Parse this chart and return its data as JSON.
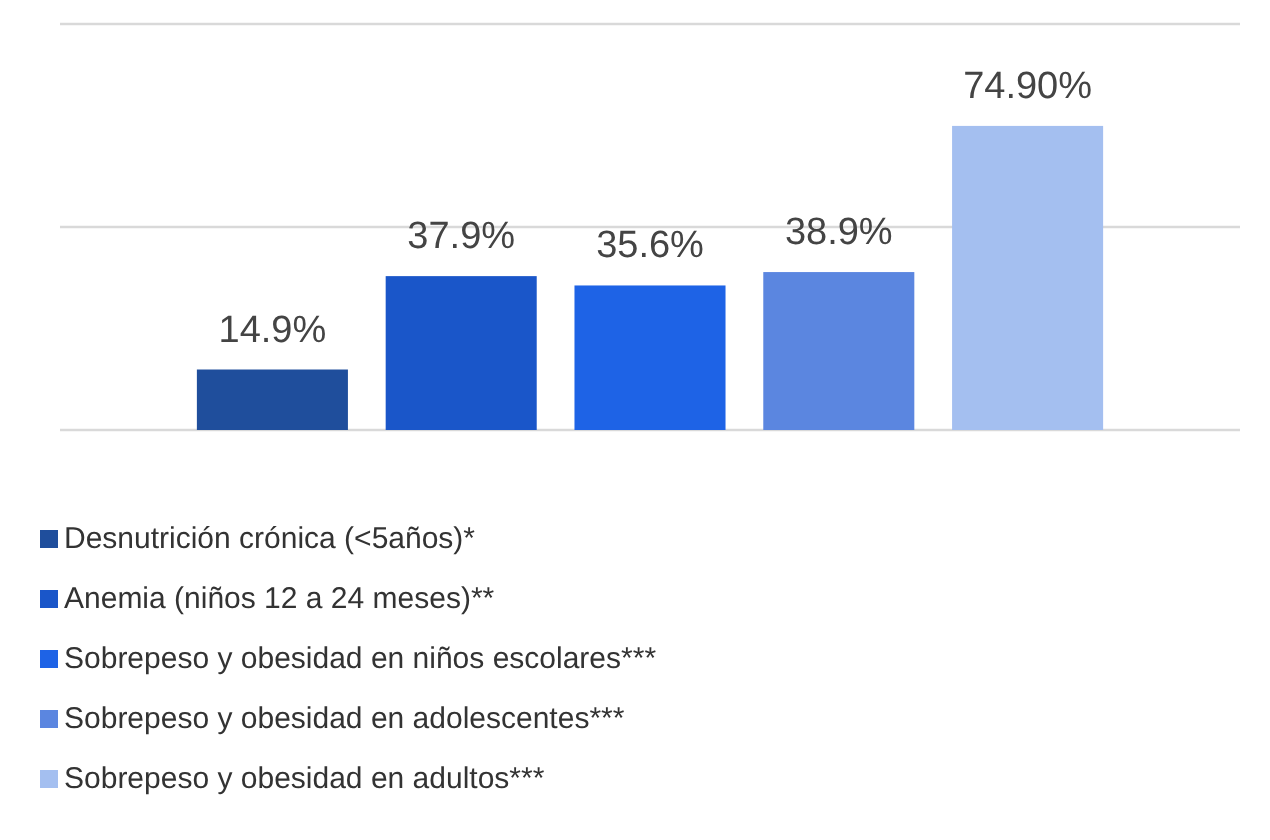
{
  "chart_data": {
    "type": "bar",
    "categories": [
      null
    ],
    "ylim": [
      0,
      100
    ],
    "yticks": [
      {
        "value": 0,
        "label": null
      },
      {
        "value": 50,
        "label": null
      },
      {
        "value": 100,
        "label": null
      }
    ],
    "grid": "y",
    "legend": "bottom",
    "series": [
      {
        "name": "Desnutrición crónica (<5años)*",
        "color": "#1f4e9c",
        "values": [
          14.9
        ],
        "value_labels": [
          "14.9%"
        ]
      },
      {
        "name": "Anemia (niños 12 a 24 meses)**",
        "color": "#1a56c9",
        "values": [
          37.9
        ],
        "value_labels": [
          "37.9%"
        ]
      },
      {
        "name": "Sobrepeso y obesidad en niños escolares***",
        "color": "#1e63e6",
        "values": [
          35.6
        ],
        "value_labels": [
          "35.6%"
        ]
      },
      {
        "name": "Sobrepeso y obesidad en adolescentes***",
        "color": "#5b86e0",
        "values": [
          38.9
        ],
        "value_labels": [
          "38.9%"
        ]
      },
      {
        "name": "Sobrepeso y obesidad en adultos***",
        "color": "#a4bff0",
        "values": [
          74.9
        ],
        "value_labels": [
          "74.90%"
        ]
      }
    ]
  }
}
